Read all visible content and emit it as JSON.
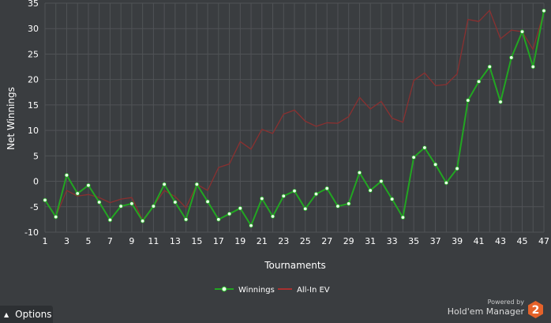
{
  "chart_data": {
    "type": "line",
    "xlabel": "Tournaments",
    "ylabel": "Net Winnings",
    "xlim": [
      1,
      47
    ],
    "ylim": [
      -10,
      35
    ],
    "y_ticks": [
      -10,
      -5,
      0,
      5,
      10,
      15,
      20,
      25,
      30,
      35
    ],
    "x_ticks": [
      1,
      3,
      5,
      7,
      9,
      11,
      13,
      15,
      17,
      19,
      21,
      23,
      25,
      27,
      29,
      31,
      33,
      35,
      37,
      39,
      41,
      43,
      45,
      47
    ],
    "grid": true,
    "legend": "bottom-center",
    "x": [
      1,
      2,
      3,
      4,
      5,
      6,
      7,
      8,
      9,
      10,
      11,
      12,
      13,
      14,
      15,
      16,
      17,
      18,
      19,
      20,
      21,
      22,
      23,
      24,
      25,
      26,
      27,
      28,
      29,
      30,
      31,
      32,
      33,
      34,
      35,
      36,
      37,
      38,
      39,
      40,
      41,
      42,
      43,
      44,
      45,
      46,
      47
    ],
    "series": [
      {
        "name": "Winnings",
        "color": "#22a622",
        "markers": true,
        "values": [
          -3.7,
          -7.0,
          1.2,
          -2.4,
          -0.8,
          -4.1,
          -7.6,
          -4.9,
          -4.4,
          -7.8,
          -4.9,
          -0.6,
          -4.1,
          -7.5,
          -0.6,
          -4.0,
          -7.5,
          -6.4,
          -5.3,
          -8.7,
          -3.4,
          -6.9,
          -2.9,
          -1.9,
          -5.4,
          -2.5,
          -1.4,
          -4.9,
          -4.4,
          1.7,
          -1.8,
          0.0,
          -3.5,
          -7.1,
          4.7,
          6.6,
          3.3,
          -0.3,
          2.5,
          15.9,
          19.6,
          22.5,
          15.6,
          24.3,
          29.4,
          22.5,
          33.5
        ]
      },
      {
        "name": "All-In EV",
        "color": "#8a3030",
        "markers": false,
        "values": [
          -3.7,
          -6.9,
          -1.8,
          -2.9,
          -2.6,
          -3.2,
          -4.2,
          -3.5,
          -3.2,
          -7.6,
          -4.9,
          -1.8,
          -3.0,
          -5.2,
          -0.6,
          -1.8,
          2.7,
          3.4,
          7.8,
          6.3,
          10.2,
          9.4,
          13.2,
          14.0,
          11.8,
          10.8,
          11.5,
          11.4,
          12.7,
          16.5,
          14.2,
          15.7,
          12.4,
          11.6,
          19.8,
          21.3,
          18.8,
          19.0,
          21.1,
          31.8,
          31.4,
          33.6,
          28.0,
          29.7,
          29.4,
          25.9,
          33.3
        ]
      }
    ]
  },
  "options_label": "Options",
  "powered_by": "Powered by",
  "brand_name": "Hold'em Manager",
  "logo_number": "2",
  "colors": {
    "background": "#3a3d40",
    "grid": "#505356",
    "winnings": "#22a622",
    "all_in_ev": "#8a3030",
    "logo": "#e5622a"
  }
}
